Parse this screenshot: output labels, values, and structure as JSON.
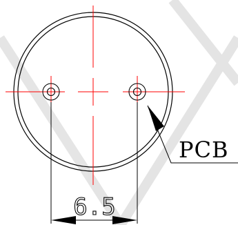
{
  "drawing": {
    "dimension_value": "6.5",
    "callout_label": "PCB",
    "colors": {
      "outline": "#000000",
      "centerline": "#ff0000",
      "watermark": "#c8c8c8"
    }
  }
}
